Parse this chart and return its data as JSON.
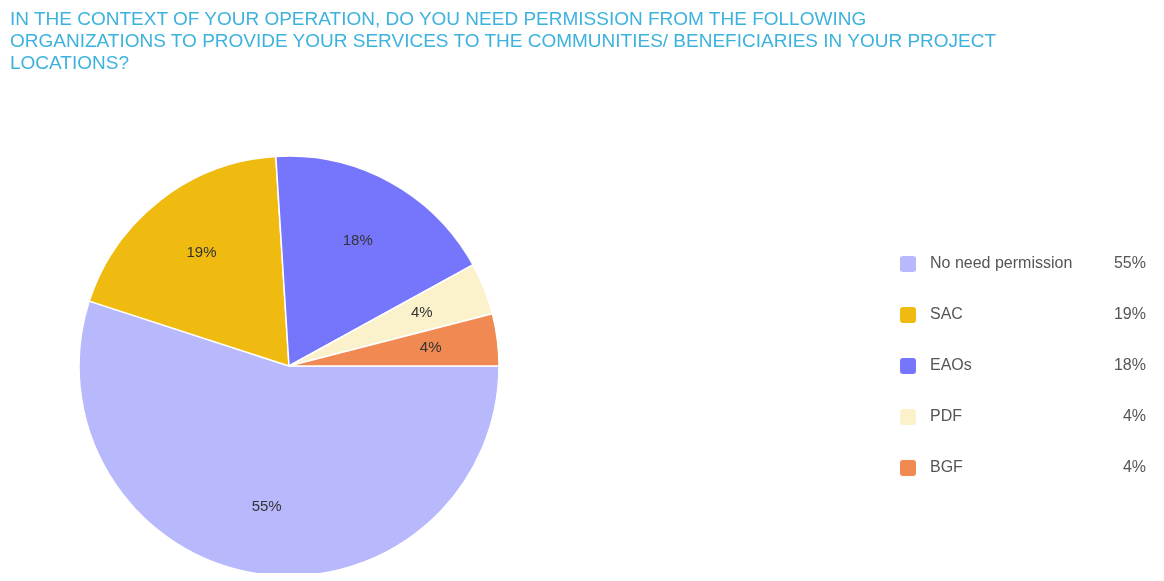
{
  "chart_data": {
    "type": "pie",
    "title": "IN THE CONTEXT OF YOUR OPERATION, DO YOU NEED PERMISSION FROM THE FOLLOWING ORGANIZATIONS TO PROVIDE YOUR SERVICES TO THE COMMUNITIES/ BENEFICIARIES IN YOUR PROJECT LOCATIONS?",
    "categories": [
      "No need permission",
      "SAC",
      "EAOs",
      "PDF",
      "BGF"
    ],
    "values": [
      55,
      19,
      18,
      4,
      4
    ],
    "colors": [
      "#b8b8fc",
      "#f0bb10",
      "#7676fc",
      "#fbf2cc",
      "#f08a52"
    ],
    "value_labels": [
      "55%",
      "19%",
      "18%",
      "4%",
      "4%"
    ],
    "legend": "right"
  }
}
